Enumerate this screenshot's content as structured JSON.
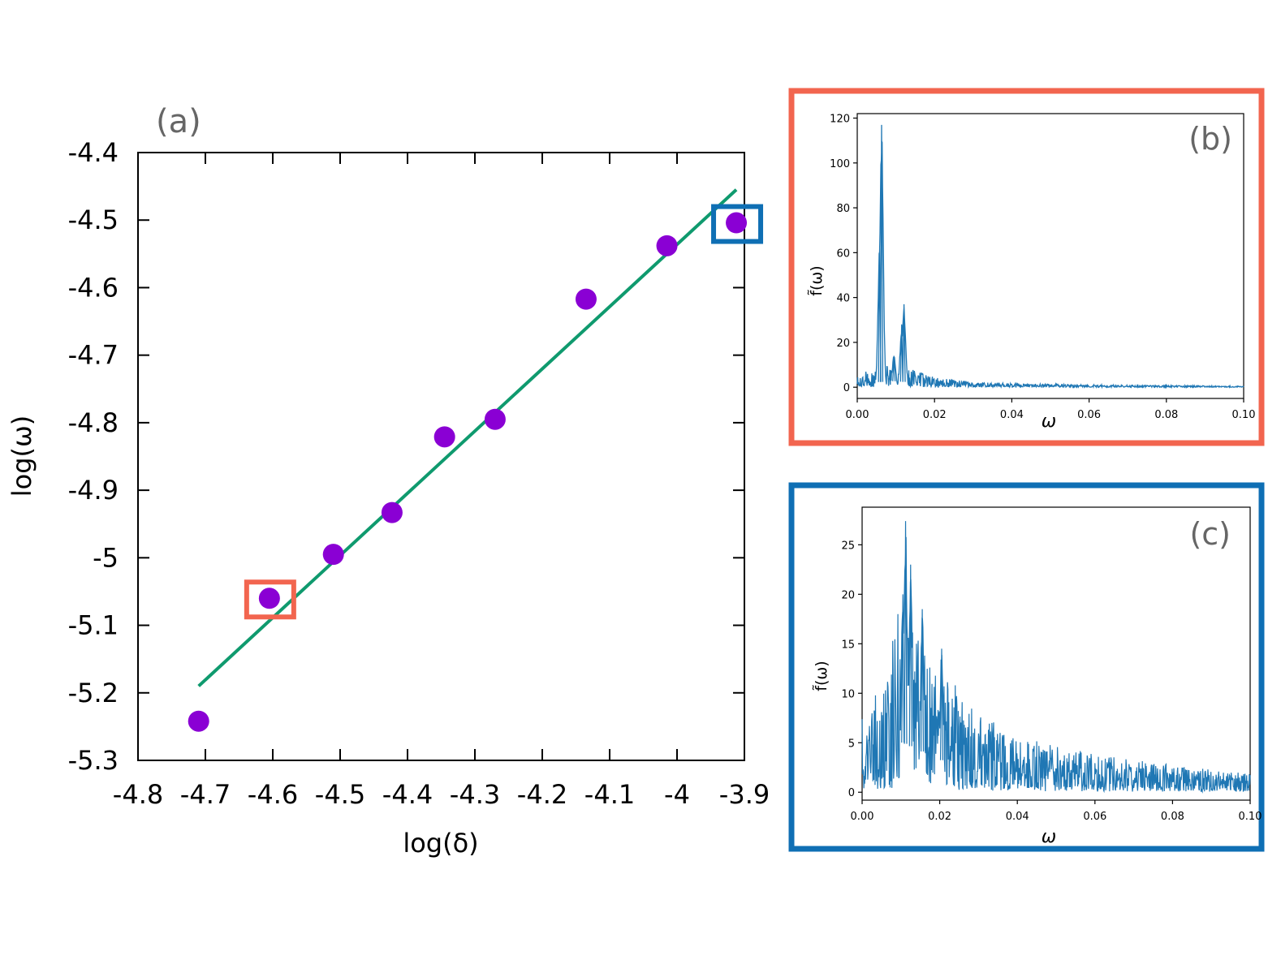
{
  "colors": {
    "point": "#8a00d4",
    "fit_line": "#0f9a6e",
    "spectrum": "#1f77b4",
    "highlight_b": "#f2654f",
    "highlight_c": "#0f6fb4",
    "panel_label": "#666666"
  },
  "chart_data": [
    {
      "id": "a",
      "panel_label": "(a)",
      "type": "scatter",
      "xlabel": "log(δ)",
      "ylabel": "log(ω)",
      "xlim": [
        -4.8,
        -3.9
      ],
      "ylim": [
        -5.3,
        -4.4
      ],
      "xticks": [
        -4.8,
        -4.7,
        -4.6,
        -4.5,
        -4.4,
        -4.3,
        -4.2,
        -4.1,
        -4.0,
        -3.9
      ],
      "xtick_labels": [
        "-4.8",
        "-4.7",
        "-4.6",
        "-4.5",
        "-4.4",
        "-4.3",
        "-4.2",
        "-4.1",
        "-4",
        "-3.9"
      ],
      "yticks": [
        -4.4,
        -4.5,
        -4.6,
        -4.7,
        -4.8,
        -4.9,
        -5.0,
        -5.1,
        -5.2,
        -5.3
      ],
      "ytick_labels": [
        "-4.4",
        "-4.5",
        "-4.6",
        "-4.7",
        "-4.8",
        "-4.9",
        "-5",
        "-5.1",
        "-5.2",
        "-5.3"
      ],
      "points": [
        {
          "x": -4.71,
          "y": -5.242
        },
        {
          "x": -4.605,
          "y": -5.06
        },
        {
          "x": -4.51,
          "y": -4.995
        },
        {
          "x": -4.423,
          "y": -4.933
        },
        {
          "x": -4.345,
          "y": -4.821
        },
        {
          "x": -4.27,
          "y": -4.795
        },
        {
          "x": -4.135,
          "y": -4.617
        },
        {
          "x": -4.015,
          "y": -4.538
        },
        {
          "x": -3.912,
          "y": -4.504
        }
      ],
      "fit_line": {
        "x": [
          -4.71,
          -3.912
        ],
        "y": [
          -5.19,
          -4.455
        ]
      },
      "highlights": [
        {
          "point_index": 1,
          "links_to": "b"
        },
        {
          "point_index": 8,
          "links_to": "c"
        }
      ]
    },
    {
      "id": "b",
      "panel_label": "(b)",
      "type": "line",
      "xlabel": "ω",
      "ylabel": "f̃(ω)",
      "xlim": [
        0,
        0.1
      ],
      "ylim": [
        -5,
        122
      ],
      "xticks": [
        0,
        0.02,
        0.04,
        0.06,
        0.08,
        0.1
      ],
      "xtick_labels": [
        "0.00",
        "0.02",
        "0.04",
        "0.06",
        "0.08",
        "0.10"
      ],
      "yticks": [
        0,
        20,
        40,
        60,
        80,
        100,
        120
      ],
      "ytick_labels": [
        "0",
        "20",
        "40",
        "60",
        "80",
        "100",
        "120"
      ],
      "peaks": [
        {
          "x": 0.0063,
          "y": 117
        },
        {
          "x": 0.0058,
          "y": 63
        },
        {
          "x": 0.0121,
          "y": 37
        },
        {
          "x": 0.0115,
          "y": 28
        },
        {
          "x": 0.0095,
          "y": 14
        }
      ],
      "envelope": {
        "x": [
          0,
          0.01,
          0.02,
          0.03,
          0.04,
          0.06,
          0.08,
          0.1
        ],
        "y": [
          6,
          9,
          4,
          2,
          1.5,
          1,
          0.7,
          0.5
        ]
      }
    },
    {
      "id": "c",
      "panel_label": "(c)",
      "type": "line",
      "xlabel": "ω",
      "ylabel": "f̃(ω)",
      "xlim": [
        0,
        0.1
      ],
      "ylim": [
        -0.8,
        28.8
      ],
      "xticks": [
        0,
        0.02,
        0.04,
        0.06,
        0.08,
        0.1
      ],
      "xtick_labels": [
        "0.00",
        "0.02",
        "0.04",
        "0.06",
        "0.08",
        "0.10"
      ],
      "yticks": [
        0,
        5,
        10,
        15,
        20,
        25
      ],
      "ytick_labels": [
        "0",
        "5",
        "10",
        "15",
        "20",
        "25"
      ],
      "peaks": [
        {
          "x": 0.0112,
          "y": 27.4
        },
        {
          "x": 0.0125,
          "y": 23
        },
        {
          "x": 0.0105,
          "y": 20
        },
        {
          "x": 0.0155,
          "y": 18.5
        },
        {
          "x": 0.0205,
          "y": 14.5
        }
      ],
      "envelope": {
        "x": [
          0,
          0.005,
          0.01,
          0.015,
          0.02,
          0.03,
          0.04,
          0.06,
          0.08,
          0.1
        ],
        "y": [
          8,
          9,
          17,
          14,
          11,
          7,
          5,
          3.3,
          2.4,
          1.6
        ]
      }
    }
  ]
}
